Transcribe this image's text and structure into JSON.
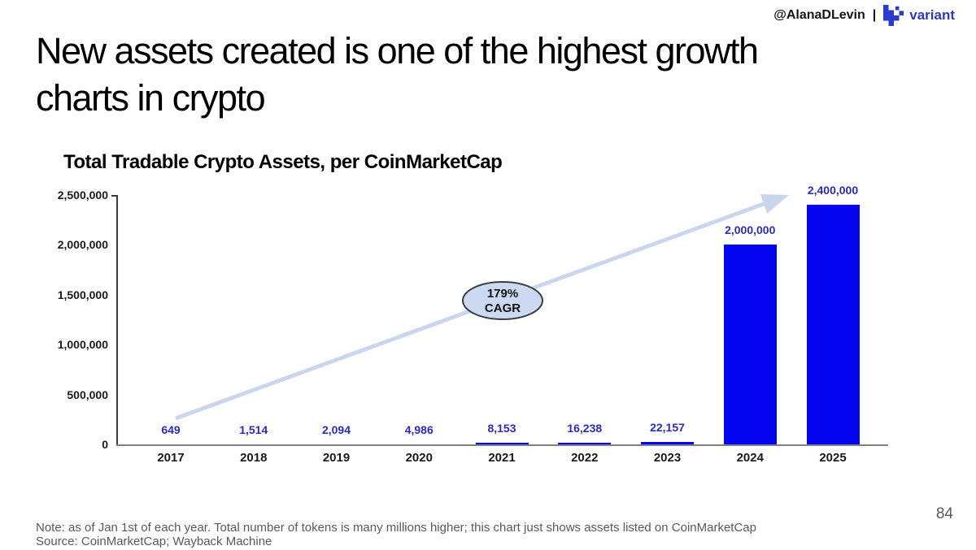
{
  "header": {
    "handle": "@AlanaDLevin",
    "separator": "|",
    "brand": "variant",
    "brand_color": "#2b3ab5"
  },
  "title": {
    "line1": "New assets created is one of the highest growth",
    "line2": "charts in crypto"
  },
  "footer": {
    "note": "Note: as of Jan 1st of each year. Total number of tokens is many millions higher; this chart just shows assets listed on CoinMarketCap",
    "source": "Source: CoinMarketCap; Wayback Machine",
    "page_number": "84"
  },
  "chart_data": {
    "type": "bar",
    "title": "Total Tradable Crypto Assets, per CoinMarketCap",
    "categories": [
      "2017",
      "2018",
      "2019",
      "2020",
      "2021",
      "2022",
      "2023",
      "2024",
      "2025"
    ],
    "values": [
      649,
      1514,
      2094,
      4986,
      8153,
      16238,
      22157,
      2000000,
      2400000
    ],
    "value_labels": [
      "649",
      "1,514",
      "2,094",
      "4,986",
      "8,153",
      "16,238",
      "22,157",
      "2,000,000",
      "2,400,000"
    ],
    "xlabel": "",
    "ylabel": "",
    "ylim": [
      0,
      2500000
    ],
    "ytick_labels": [
      "2,500,000",
      "2,000,000",
      "1,500,000",
      "1,000,000",
      "500,000",
      "0"
    ],
    "grid": false,
    "legend": false,
    "annotation": {
      "line1": "179%",
      "line2": "CAGR"
    },
    "colors": {
      "bar": "#0404ee",
      "value_label": "#2b2bb4",
      "arrow": "#c9d6ec",
      "ellipse_fill": "#cbdaf2",
      "ellipse_stroke": "#3d3d3d",
      "axis_y": "#3c3c3c",
      "axis_x": "#808080"
    }
  }
}
